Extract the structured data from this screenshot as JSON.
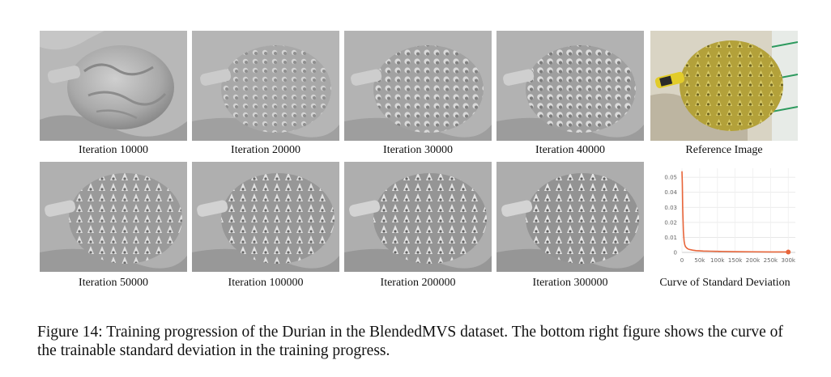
{
  "figure": {
    "row1_captions": [
      "Iteration 10000",
      "Iteration 20000",
      "Iteration 30000",
      "Iteration 40000",
      "Reference Image"
    ],
    "row2_captions": [
      "Iteration 50000",
      "Iteration 100000",
      "Iteration 200000",
      "Iteration 300000",
      "Curve of Standard Deviation"
    ],
    "caption_label": "Figure 14:",
    "caption_text": "Training progression of the Durian in the BlendedMVS dataset. The bottom right figure shows the curve of the trainable standard deviation in the training progress."
  },
  "chart_data": {
    "type": "line",
    "title": "",
    "xlabel": "",
    "ylabel": "",
    "x_ticks": [
      "0",
      "50k",
      "100k",
      "150k",
      "200k",
      "250k",
      "300k"
    ],
    "y_ticks": [
      "0",
      "0.01",
      "0.02",
      "0.03",
      "0.04",
      "0.05"
    ],
    "xlim": [
      0,
      320000
    ],
    "ylim": [
      0,
      0.056
    ],
    "grid": true,
    "line_color": "#e8653a",
    "series": [
      {
        "x": [
          0,
          1000,
          2000,
          4000,
          6000,
          8000,
          10000,
          15000,
          20000,
          30000,
          40000,
          60000,
          80000,
          100000,
          150000,
          200000,
          250000,
          300000
        ],
        "values": [
          0.054,
          0.046,
          0.03,
          0.014,
          0.0075,
          0.005,
          0.0038,
          0.0026,
          0.002,
          0.0015,
          0.0012,
          0.0009,
          0.0008,
          0.0007,
          0.0005,
          0.0004,
          0.0003,
          0.0003
        ]
      }
    ]
  }
}
